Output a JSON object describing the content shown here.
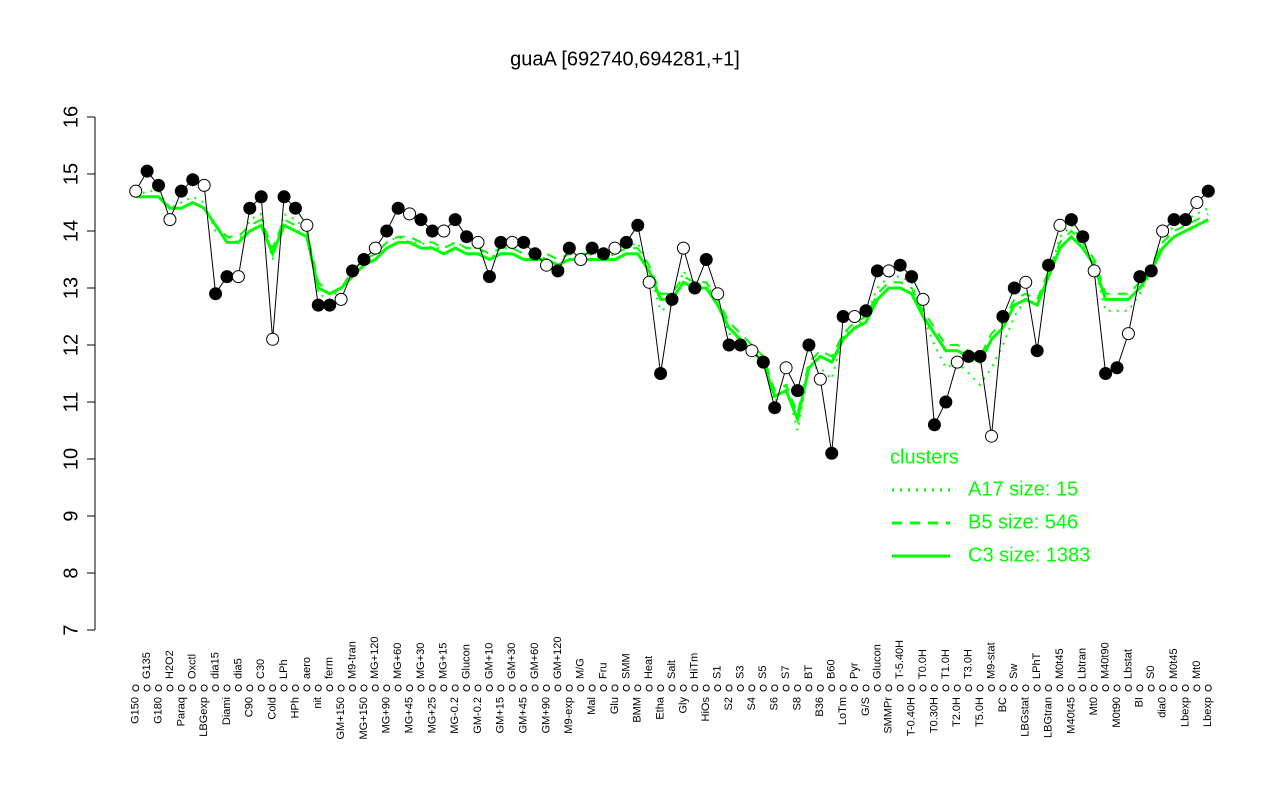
{
  "chart_data": {
    "type": "line",
    "title": "guaA [692740,694281,+1]",
    "categories": [
      "G150",
      "G135",
      "G180",
      "H2O2",
      "Paraq",
      "Oxctl",
      "LBGexp",
      "dia15",
      "Diami",
      "dia5",
      "C90",
      "C30",
      "Cold",
      "LPh",
      "HPh",
      "aero",
      "nit",
      "ferm",
      "GM+150",
      "M9-tran",
      "MG+150",
      "MG+120",
      "MG+90",
      "MG+60",
      "MG+45",
      "MG+30",
      "MG+25",
      "MG+15",
      "MG-0.2",
      "Glucon",
      "GM-0.2",
      "GM+10",
      "GM+15",
      "GM+30",
      "GM+45",
      "GM+60",
      "GM+90",
      "GM+120",
      "M9-exp",
      "M/G",
      "Mal",
      "Fru",
      "Glu",
      "SMM",
      "BMM",
      "Heat",
      "Etha",
      "Salt",
      "Gly",
      "HiTm",
      "HiOs",
      "S1",
      "S2",
      "S3",
      "S4",
      "S5",
      "S6",
      "S7",
      "S8",
      "BT",
      "B36",
      "B60",
      "LoTm",
      "Pyr",
      "G/S",
      "Glucon",
      "SMMPr",
      "T-5.40H",
      "T-0.40H",
      "T0.0H",
      "T0.30H",
      "T1.0H",
      "T2.0H",
      "T3.0H",
      "T5.0H",
      "M9-stat",
      "BC",
      "Sw",
      "LBGstat",
      "LPhT",
      "LBGtran",
      "M0t45",
      "M40t45",
      "Lbtran",
      "Mt0",
      "M40t90",
      "M0t90",
      "Lbstat",
      "BI",
      "S0",
      "dia0",
      "M0t45",
      "Lbexp",
      "Mt0",
      "Lbexp"
    ],
    "point_color": "#000000",
    "series": [
      {
        "color": "#000000",
        "values": [
          14.7,
          15.05,
          14.8,
          14.2,
          14.7,
          14.9,
          14.8,
          12.9,
          13.2,
          13.2,
          14.4,
          14.6,
          12.1,
          14.6,
          14.4,
          14.1,
          12.7,
          12.7,
          12.8,
          13.3,
          13.5,
          13.7,
          14.0,
          14.4,
          14.3,
          14.2,
          14.0,
          14.0,
          14.2,
          13.9,
          13.8,
          13.2,
          13.8,
          13.8,
          13.8,
          13.6,
          13.4,
          13.3,
          13.7,
          13.5,
          13.7,
          13.6,
          13.7,
          13.8,
          14.1,
          13.1,
          11.5,
          12.8,
          13.7,
          13.0,
          13.5,
          12.9,
          12.0,
          12.0,
          11.9,
          11.7,
          10.9,
          11.6,
          11.2,
          12.0,
          11.4,
          10.1,
          12.5,
          12.5,
          12.6,
          13.3,
          13.3,
          13.4,
          13.2,
          12.8,
          10.6,
          11.0,
          11.7,
          11.8,
          11.8,
          10.4,
          12.5,
          13.0,
          13.1,
          11.9,
          13.4,
          14.1,
          14.2,
          13.9,
          13.3,
          11.5,
          11.6,
          12.2,
          13.2,
          13.3,
          14.0,
          14.2,
          14.2,
          14.5,
          14.7
        ]
      },
      {
        "name": "A17 size: 15",
        "style": "dotted",
        "color": "#00ff00",
        "values": [
          14.6,
          14.7,
          14.7,
          14.4,
          14.5,
          14.6,
          14.5,
          14.0,
          13.9,
          13.8,
          14.2,
          14.3,
          13.5,
          14.3,
          14.2,
          14.0,
          12.9,
          12.8,
          13.0,
          13.2,
          13.4,
          13.6,
          13.8,
          13.9,
          13.8,
          13.8,
          13.7,
          13.7,
          13.8,
          13.7,
          13.7,
          13.5,
          13.7,
          13.7,
          13.6,
          13.6,
          13.5,
          13.4,
          13.6,
          13.5,
          13.6,
          13.5,
          13.6,
          13.7,
          13.8,
          13.3,
          12.6,
          12.7,
          13.3,
          13.0,
          13.1,
          12.7,
          12.2,
          12.1,
          11.9,
          11.7,
          11.0,
          11.3,
          10.5,
          11.6,
          11.6,
          11.4,
          12.2,
          12.3,
          12.5,
          13.0,
          13.2,
          13.2,
          13.1,
          12.5,
          12.0,
          11.6,
          11.7,
          11.5,
          11.3,
          11.6,
          12.0,
          12.5,
          12.8,
          12.7,
          13.2,
          13.9,
          14.1,
          13.8,
          13.4,
          12.6,
          12.6,
          12.6,
          12.9,
          13.3,
          13.8,
          14.1,
          14.2,
          14.3,
          14.4
        ]
      },
      {
        "name": "B5 size: 546",
        "style": "dashed",
        "color": "#00ff00",
        "values": [
          14.6,
          14.6,
          14.6,
          14.4,
          14.4,
          14.5,
          14.4,
          14.1,
          13.9,
          13.9,
          14.1,
          14.2,
          13.7,
          14.2,
          14.1,
          14.0,
          13.1,
          12.9,
          13.0,
          13.3,
          13.5,
          13.6,
          13.8,
          13.9,
          13.9,
          13.8,
          13.8,
          13.7,
          13.8,
          13.7,
          13.7,
          13.6,
          13.7,
          13.7,
          13.6,
          13.6,
          13.6,
          13.5,
          13.6,
          13.6,
          13.6,
          13.6,
          13.6,
          13.7,
          13.7,
          13.4,
          12.9,
          12.9,
          13.2,
          13.1,
          13.1,
          12.8,
          12.4,
          12.2,
          12.0,
          11.8,
          11.2,
          11.3,
          10.8,
          11.7,
          11.9,
          11.8,
          12.2,
          12.4,
          12.5,
          12.9,
          13.1,
          13.1,
          13.0,
          12.6,
          12.3,
          12.0,
          12.0,
          11.9,
          11.8,
          12.2,
          12.4,
          12.8,
          12.9,
          12.8,
          13.3,
          13.8,
          14.0,
          13.8,
          13.5,
          12.9,
          12.9,
          12.9,
          13.1,
          13.4,
          13.8,
          14.0,
          14.1,
          14.2,
          14.3
        ]
      },
      {
        "name": "C3 size: 1383",
        "style": "solid",
        "color": "#00ff00",
        "values": [
          14.6,
          14.6,
          14.6,
          14.4,
          14.4,
          14.5,
          14.4,
          14.1,
          13.8,
          13.8,
          14.0,
          14.1,
          13.6,
          14.1,
          14.0,
          13.9,
          13.0,
          12.9,
          13.0,
          13.2,
          13.4,
          13.5,
          13.7,
          13.8,
          13.8,
          13.7,
          13.7,
          13.6,
          13.7,
          13.6,
          13.6,
          13.5,
          13.6,
          13.6,
          13.5,
          13.5,
          13.5,
          13.4,
          13.5,
          13.5,
          13.5,
          13.5,
          13.5,
          13.6,
          13.6,
          13.3,
          12.8,
          12.8,
          13.1,
          13.0,
          13.0,
          12.7,
          12.3,
          12.1,
          11.9,
          11.7,
          11.1,
          11.2,
          10.7,
          11.6,
          11.8,
          11.7,
          12.1,
          12.3,
          12.4,
          12.8,
          13.0,
          13.0,
          12.9,
          12.5,
          12.2,
          11.9,
          11.9,
          11.8,
          11.7,
          12.1,
          12.3,
          12.7,
          12.8,
          12.7,
          13.2,
          13.7,
          13.9,
          13.7,
          13.4,
          12.8,
          12.8,
          12.8,
          13.0,
          13.3,
          13.7,
          13.9,
          14.0,
          14.1,
          14.2
        ]
      }
    ],
    "legend_title": "clusters",
    "ylim": [
      7,
      16
    ],
    "yticks": [
      7,
      8,
      9,
      10,
      11,
      12,
      13,
      14,
      15,
      16
    ]
  }
}
